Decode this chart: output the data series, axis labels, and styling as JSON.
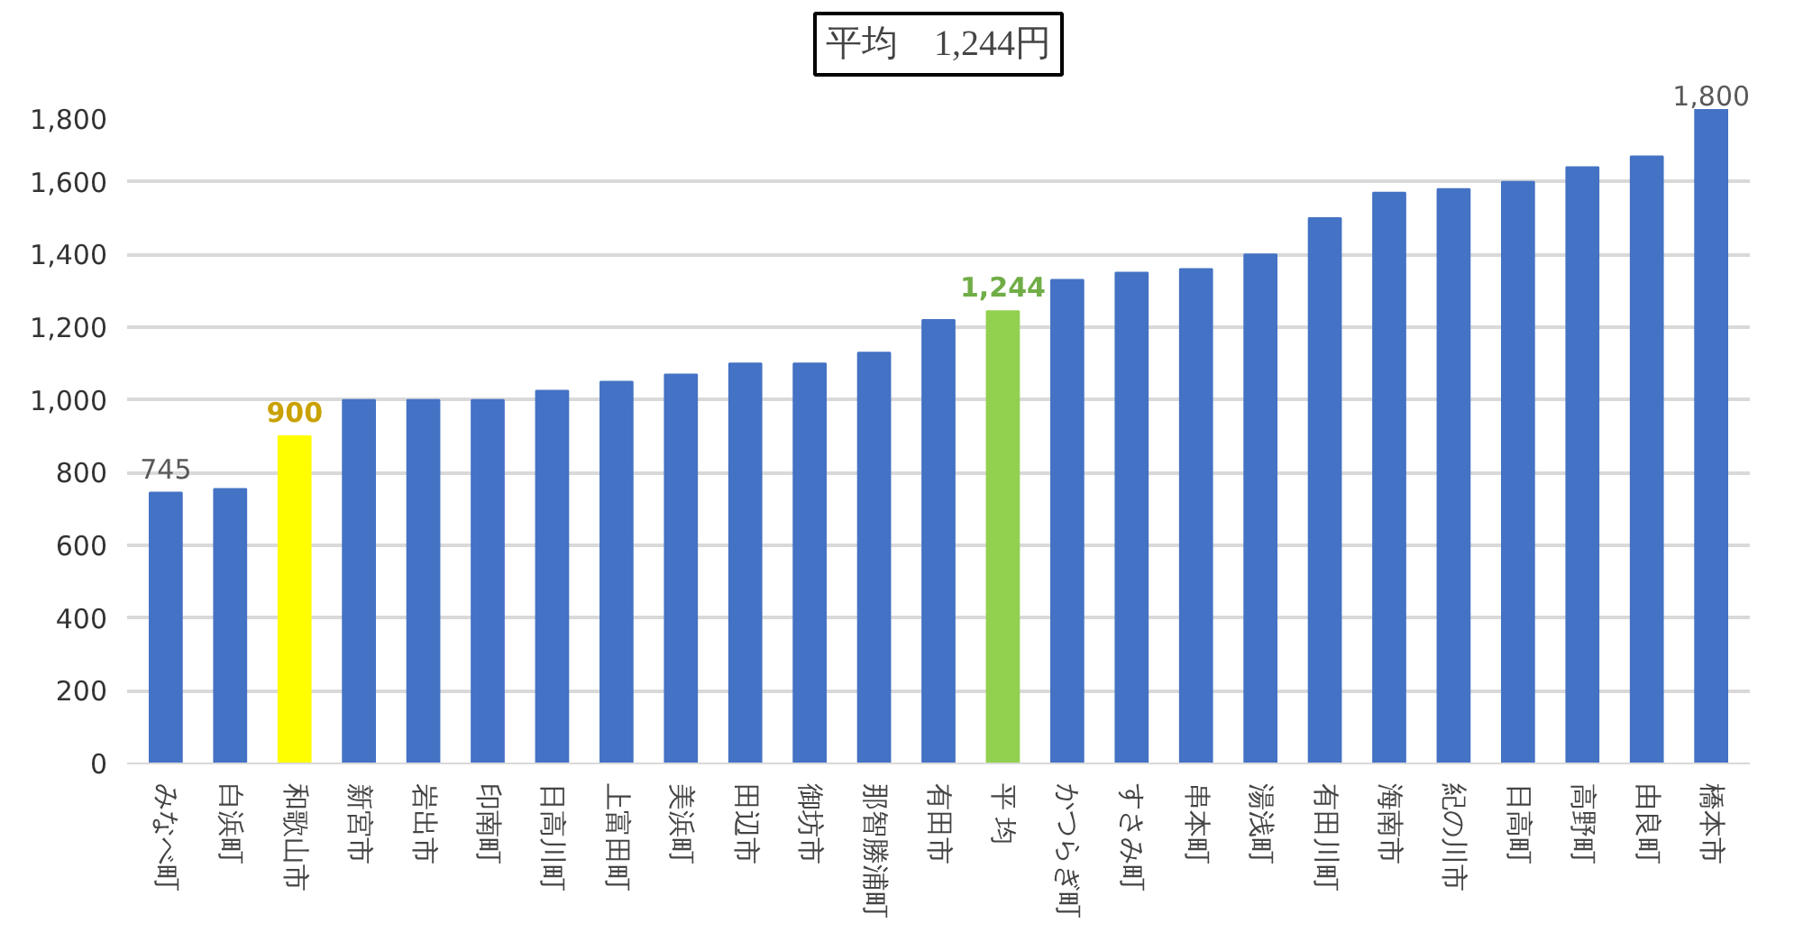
{
  "chart_data": {
    "type": "bar",
    "title": "平均　1,244円",
    "categories": [
      "みなべ町",
      "白浜町",
      "和歌山市",
      "新宮市",
      "岩出市",
      "印南町",
      "日高川町",
      "上富田町",
      "美浜町",
      "田辺市",
      "御坊市",
      "那智勝浦町",
      "有田市",
      "平 均",
      "かつらぎ町",
      "すさみ町",
      "串本町",
      "湯浅町",
      "有田川町",
      "海南市",
      "紀の川市",
      "日高町",
      "高野町",
      "由良町",
      "橋本市"
    ],
    "values": [
      745,
      755,
      900,
      1000,
      1000,
      1000,
      1025,
      1050,
      1070,
      1100,
      1100,
      1130,
      1220,
      1244,
      1330,
      1350,
      1360,
      1400,
      1500,
      1570,
      1580,
      1600,
      1640,
      1670,
      1800
    ],
    "colors": [
      "#4472c4",
      "#4472c4",
      "#ffff00",
      "#4472c4",
      "#4472c4",
      "#4472c4",
      "#4472c4",
      "#4472c4",
      "#4472c4",
      "#4472c4",
      "#4472c4",
      "#4472c4",
      "#4472c4",
      "#92d050",
      "#4472c4",
      "#4472c4",
      "#4472c4",
      "#4472c4",
      "#4472c4",
      "#4472c4",
      "#4472c4",
      "#4472c4",
      "#4472c4",
      "#4472c4",
      "#4472c4"
    ],
    "value_labels": [
      "745",
      null,
      "900",
      null,
      null,
      null,
      null,
      null,
      null,
      null,
      null,
      null,
      null,
      "1,244",
      null,
      null,
      null,
      null,
      null,
      null,
      null,
      null,
      null,
      null,
      "1,800"
    ],
    "ylim": [
      0,
      1800
    ],
    "yticks": [
      0,
      200,
      400,
      600,
      800,
      {
        "value": 1000,
        "label": "1,000"
      },
      {
        "value": 1200,
        "label": "1,200"
      },
      {
        "value": 1400,
        "label": "1,400"
      },
      {
        "value": 1600,
        "label": "1,600"
      },
      {
        "value": 1800,
        "label": "1,800"
      }
    ],
    "grid": "y"
  }
}
